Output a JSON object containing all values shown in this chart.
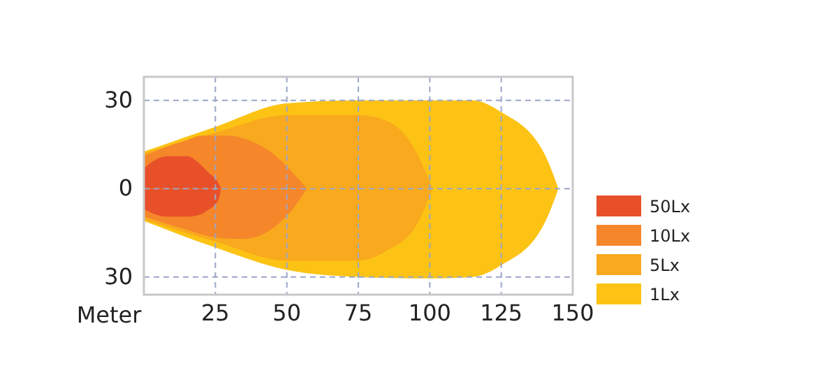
{
  "chart_data": {
    "type": "area",
    "xlabel": "Meter",
    "xlim": [
      0,
      150
    ],
    "ylim": [
      -36,
      38
    ],
    "xticks": [
      25,
      50,
      75,
      100,
      125,
      150
    ],
    "yticks": [
      {
        "value": -30,
        "label": "30"
      },
      0,
      30
    ],
    "grid": true,
    "legend": "right",
    "series": [
      {
        "name": "50Lx",
        "color": "#e8502a",
        "x": [
          0,
          8,
          15,
          20,
          22,
          26,
          27
        ],
        "values": [
          7,
          11,
          11,
          8,
          6,
          2,
          0
        ]
      },
      {
        "name": "10Lx",
        "color": "#f5862a",
        "x": [
          0,
          10,
          15,
          20,
          30,
          35,
          45,
          52,
          57
        ],
        "values": [
          11,
          15,
          16.5,
          18,
          18,
          17,
          12,
          5.5,
          0
        ]
      },
      {
        "name": "5Lx",
        "color": "#f9a91e",
        "x": [
          0,
          25,
          50,
          75,
          85,
          95,
          101
        ],
        "values": [
          12,
          19,
          25,
          25,
          23,
          13,
          0
        ]
      },
      {
        "name": "1Lx",
        "color": "#fcc314",
        "x": [
          0,
          25,
          50,
          75,
          100,
          115,
          125,
          140,
          145
        ],
        "values": [
          12.6,
          21,
          29,
          30,
          30,
          30,
          26,
          12,
          0
        ]
      },
      {
        "color": "#e8502a",
        "x": [
          0,
          8,
          15,
          20,
          22,
          26,
          27
        ],
        "values": [
          -7,
          -9.5,
          -9.5,
          -8.7,
          -7.5,
          -4,
          0
        ]
      },
      {
        "color": "#f5862a",
        "x": [
          0,
          10,
          15,
          20,
          30,
          35,
          45,
          52,
          57
        ],
        "values": [
          -9.5,
          -12.5,
          -14,
          -15.5,
          -17,
          -17,
          -13.5,
          -7,
          0
        ]
      },
      {
        "color": "#f9a91e",
        "x": [
          0,
          25,
          50,
          75,
          85,
          95,
          101
        ],
        "values": [
          -10.5,
          -18,
          -24.5,
          -24.5,
          -21,
          -13,
          0
        ]
      },
      {
        "color": "#fcc314",
        "x": [
          0,
          25,
          50,
          75,
          100,
          115,
          125,
          140,
          145
        ],
        "values": [
          -11,
          -20,
          -27.6,
          -30,
          -30.5,
          -30,
          -26,
          -12,
          0
        ]
      }
    ]
  }
}
